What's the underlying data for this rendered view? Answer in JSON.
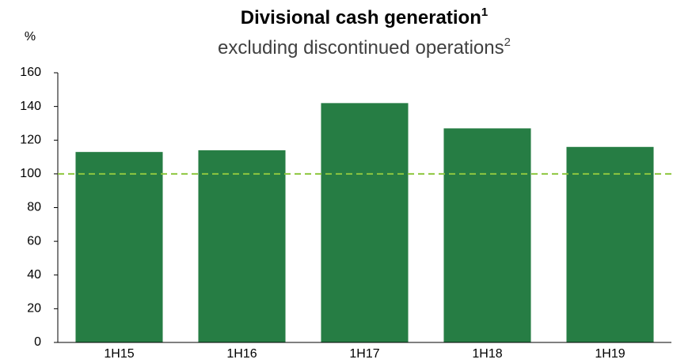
{
  "chart_data": {
    "type": "bar",
    "title": "Divisional cash generation",
    "title_superscript": "1",
    "subtitle": "excluding discontinued operations",
    "subtitle_superscript": "2",
    "y_axis_label": "%",
    "categories": [
      "1H15",
      "1H16",
      "1H17",
      "1H18",
      "1H19"
    ],
    "values": [
      113,
      114,
      142,
      127,
      116
    ],
    "color": "#267d44",
    "reference_line": {
      "value": 100,
      "color": "#8dc63f"
    },
    "ylim": [
      0,
      160
    ],
    "yticks": [
      0,
      20,
      40,
      60,
      80,
      100,
      120,
      140,
      160
    ]
  }
}
